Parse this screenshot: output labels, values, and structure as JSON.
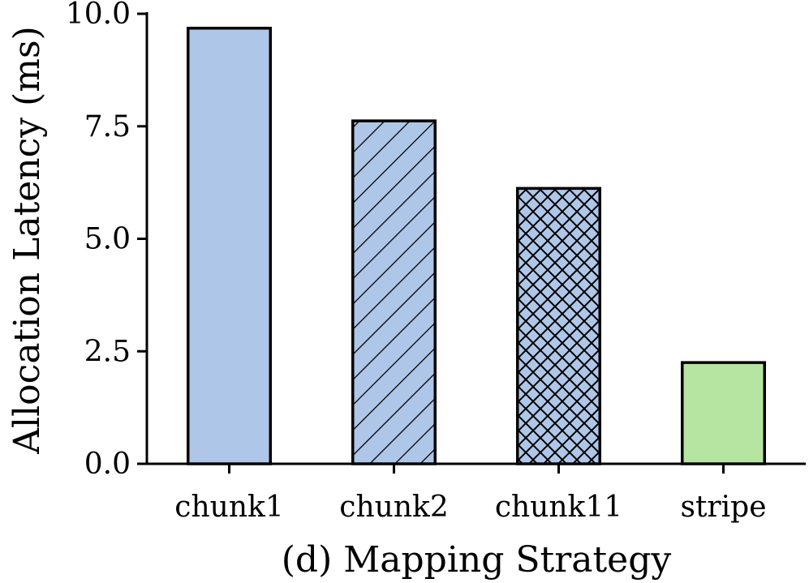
{
  "chart_data": {
    "type": "bar",
    "title": "",
    "xlabel": "(d) Mapping Strategy",
    "ylabel": "Allocation Latency (ms)",
    "categories": [
      "chunk1",
      "chunk2",
      "chunk11",
      "stripe"
    ],
    "values": [
      9.68,
      7.62,
      6.12,
      2.25
    ],
    "ylim": [
      0,
      10
    ],
    "yticks": [
      "0.0",
      "2.5",
      "5.0",
      "7.5",
      "10.0"
    ],
    "grid": false,
    "legend": "none",
    "bar_colors": [
      "#aec7e8",
      "#aec7e8",
      "#aec7e8",
      "#b5e5a0"
    ],
    "bar_hatch": [
      "none",
      "diagonal",
      "crosshatch",
      "none"
    ],
    "edge_color": "#000000"
  }
}
